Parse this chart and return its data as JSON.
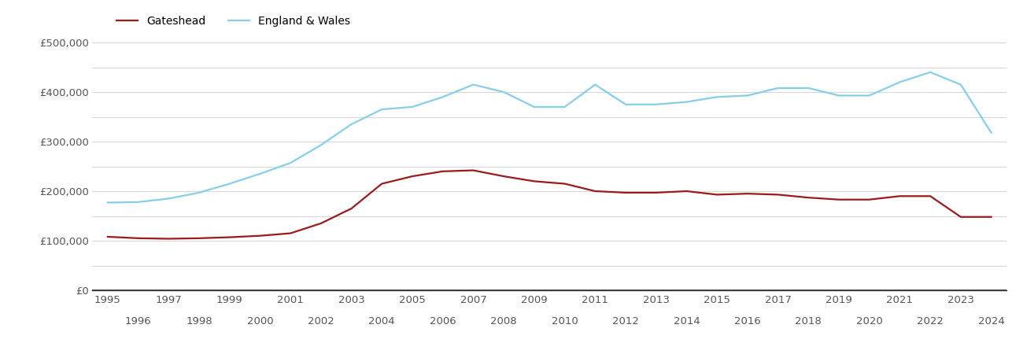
{
  "gateshead_years": [
    1995,
    1996,
    1997,
    1998,
    1999,
    2000,
    2001,
    2002,
    2003,
    2004,
    2005,
    2006,
    2007,
    2008,
    2009,
    2010,
    2011,
    2012,
    2013,
    2014,
    2015,
    2016,
    2017,
    2018,
    2019,
    2020,
    2021,
    2022,
    2023,
    2024
  ],
  "gateshead_values": [
    108000,
    105000,
    104000,
    105000,
    107000,
    110000,
    115000,
    135000,
    165000,
    215000,
    230000,
    240000,
    242000,
    230000,
    220000,
    215000,
    200000,
    197000,
    197000,
    200000,
    193000,
    195000,
    193000,
    187000,
    183000,
    183000,
    190000,
    190000,
    148000,
    148000
  ],
  "england_years": [
    1995,
    1996,
    1997,
    1998,
    1999,
    2000,
    2001,
    2002,
    2003,
    2004,
    2005,
    2006,
    2007,
    2008,
    2009,
    2010,
    2011,
    2012,
    2013,
    2014,
    2015,
    2016,
    2017,
    2018,
    2019,
    2020,
    2021,
    2022,
    2023,
    2024
  ],
  "england_values": [
    177000,
    178000,
    185000,
    197000,
    215000,
    235000,
    257000,
    293000,
    335000,
    365000,
    370000,
    390000,
    415000,
    400000,
    370000,
    370000,
    415000,
    375000,
    375000,
    380000,
    390000,
    393000,
    408000,
    408000,
    393000,
    393000,
    420000,
    440000,
    415000,
    318000
  ],
  "gateshead_color": "#9B1B1B",
  "england_color": "#87CEEB",
  "background_color": "#ffffff",
  "grid_color": "#d8d8d8",
  "ylim": [
    0,
    500000
  ],
  "ytick_major": [
    0,
    100000,
    200000,
    300000,
    400000,
    500000
  ],
  "ytick_minor": [
    50000,
    150000,
    250000,
    350000,
    450000
  ],
  "ytick_labels": [
    "£0",
    "£100,000",
    "£200,000",
    "£300,000",
    "£400,000",
    "£500,000"
  ],
  "legend_gateshead": "Gateshead",
  "legend_england": "England & Wales",
  "line_width": 1.6
}
